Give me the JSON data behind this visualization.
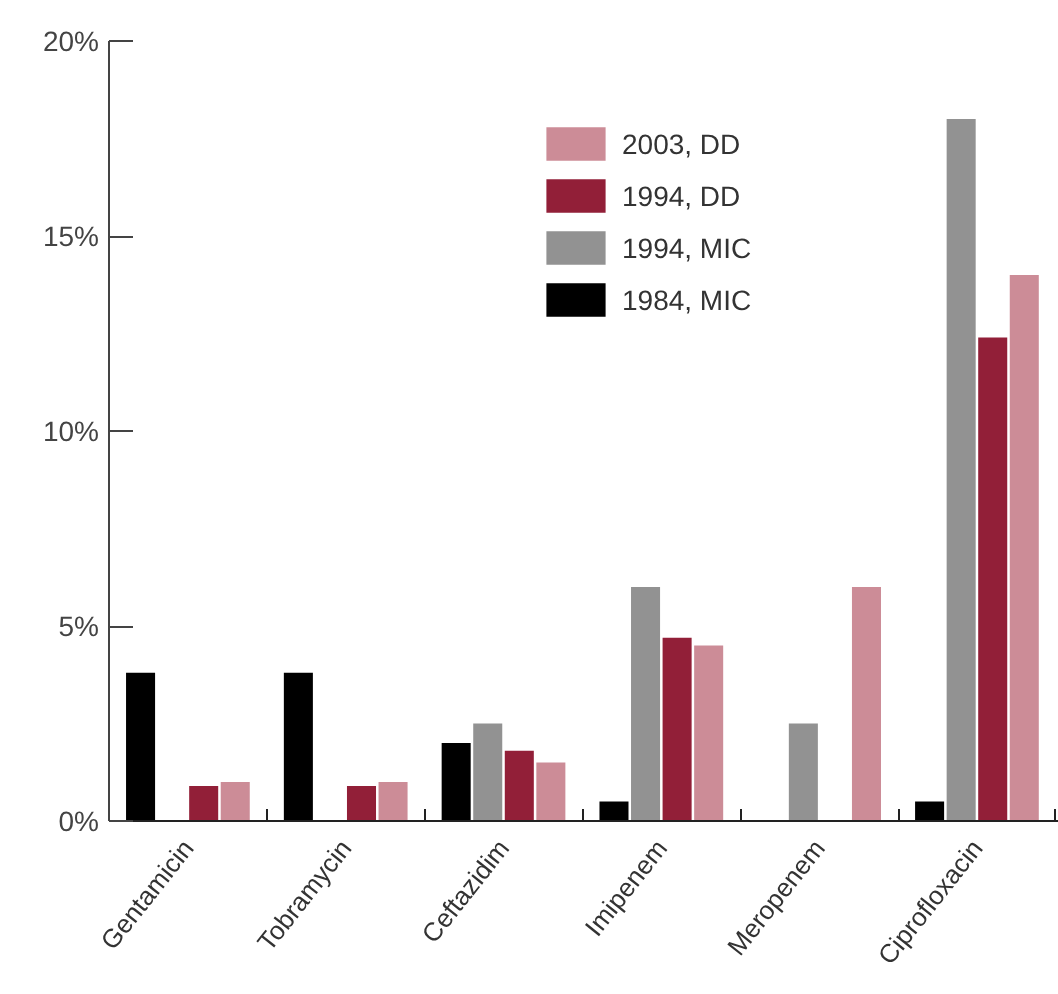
{
  "chart_data": {
    "type": "bar",
    "categories": [
      "Gentamicin",
      "Tobramycin",
      "Ceftazidim",
      "Imipenem",
      "Meropenem",
      "Ciprofloxacin"
    ],
    "series": [
      {
        "name": "1984, MIC",
        "color": "#000000",
        "values": [
          3.8,
          3.8,
          2.0,
          0.5,
          null,
          0.5
        ]
      },
      {
        "name": "1994, MIC",
        "color": "#929292",
        "values": [
          null,
          null,
          2.5,
          6.0,
          2.5,
          18.0
        ]
      },
      {
        "name": "1994, DD",
        "color": "#921f38",
        "values": [
          0.9,
          0.9,
          1.8,
          4.7,
          null,
          12.4
        ]
      },
      {
        "name": "2003, DD",
        "color": "#cc8c97",
        "values": [
          1.0,
          1.0,
          1.5,
          4.5,
          6.0,
          14.0
        ]
      }
    ],
    "ylim": [
      0,
      20
    ],
    "yticks": [
      {
        "value": 0,
        "label": "0%"
      },
      {
        "value": 5,
        "label": "5%"
      },
      {
        "value": 10,
        "label": "10%"
      },
      {
        "value": 15,
        "label": "15%"
      },
      {
        "value": 20,
        "label": "20%"
      }
    ],
    "legend": "top right",
    "grid": false
  }
}
